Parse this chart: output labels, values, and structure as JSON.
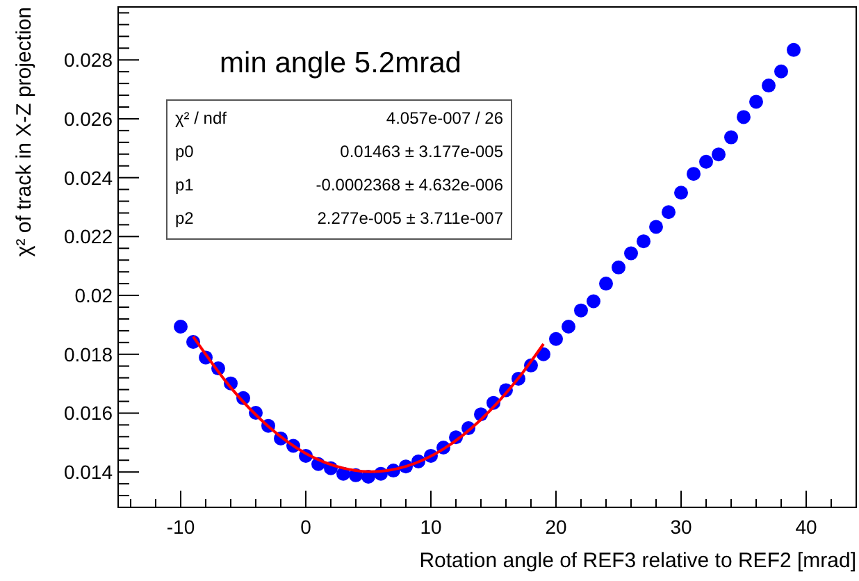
{
  "chart_data": {
    "type": "scatter",
    "title": "min angle 5.2mrad",
    "xlabel": "Rotation angle of REF3 relative to REF2 [mrad]",
    "ylabel": "χ² of track in X-Z projection",
    "annotations": [
      "χ² / ndf",
      "4.057e-007 / 26",
      "p0",
      "0.01463 ± 3.177e-005",
      "p1",
      "-0.0002368 ± 4.632e-006",
      "p2",
      "2.277e-005 ± 3.711e-007"
    ],
    "xlim": [
      -15,
      44
    ],
    "ylim": [
      0.0128,
      0.0298
    ],
    "xticks": [
      {
        "value": -14,
        "label": null
      },
      {
        "value": -12,
        "label": null
      },
      -10,
      {
        "value": -8,
        "label": null
      },
      {
        "value": -6,
        "label": null
      },
      {
        "value": -4,
        "label": null
      },
      {
        "value": -2,
        "label": null
      },
      0,
      {
        "value": 2,
        "label": null
      },
      {
        "value": 4,
        "label": null
      },
      {
        "value": 6,
        "label": null
      },
      {
        "value": 8,
        "label": null
      },
      10,
      {
        "value": 12,
        "label": null
      },
      {
        "value": 14,
        "label": null
      },
      {
        "value": 16,
        "label": null
      },
      {
        "value": 18,
        "label": null
      },
      20,
      {
        "value": 22,
        "label": null
      },
      {
        "value": 24,
        "label": null
      },
      {
        "value": 26,
        "label": null
      },
      {
        "value": 28,
        "label": null
      },
      30,
      {
        "value": 32,
        "label": null
      },
      {
        "value": 34,
        "label": null
      },
      {
        "value": 36,
        "label": null
      },
      {
        "value": 38,
        "label": null
      },
      40,
      {
        "value": 42,
        "label": null
      }
    ],
    "yticks": [
      {
        "value": 0.0128,
        "label": null
      },
      {
        "value": 0.0132,
        "label": null
      },
      {
        "value": 0.0136,
        "label": null
      },
      0.014,
      {
        "value": 0.0144,
        "label": null
      },
      {
        "value": 0.0148,
        "label": null
      },
      {
        "value": 0.0152,
        "label": null
      },
      {
        "value": 0.0156,
        "label": null
      },
      0.016,
      {
        "value": 0.0164,
        "label": null
      },
      {
        "value": 0.0168,
        "label": null
      },
      {
        "value": 0.0172,
        "label": null
      },
      {
        "value": 0.0176,
        "label": null
      },
      0.018,
      {
        "value": 0.0184,
        "label": null
      },
      {
        "value": 0.0188,
        "label": null
      },
      {
        "value": 0.0192,
        "label": null
      },
      {
        "value": 0.0196,
        "label": null
      },
      0.02,
      {
        "value": 0.0204,
        "label": null
      },
      {
        "value": 0.0208,
        "label": null
      },
      {
        "value": 0.0212,
        "label": null
      },
      {
        "value": 0.0216,
        "label": null
      },
      0.022,
      {
        "value": 0.0224,
        "label": null
      },
      {
        "value": 0.0228,
        "label": null
      },
      {
        "value": 0.0232,
        "label": null
      },
      {
        "value": 0.0236,
        "label": null
      },
      0.024,
      {
        "value": 0.0244,
        "label": null
      },
      {
        "value": 0.0248,
        "label": null
      },
      {
        "value": 0.0252,
        "label": null
      },
      {
        "value": 0.0256,
        "label": null
      },
      0.026,
      {
        "value": 0.0264,
        "label": null
      },
      {
        "value": 0.0268,
        "label": null
      },
      {
        "value": 0.0272,
        "label": null
      },
      {
        "value": 0.0276,
        "label": null
      },
      0.028,
      {
        "value": 0.0284,
        "label": null
      },
      {
        "value": 0.0288,
        "label": null
      },
      {
        "value": 0.0292,
        "label": null
      },
      {
        "value": 0.0296,
        "label": null
      }
    ],
    "grid": false,
    "series": [
      {
        "marker": "circle",
        "color": "#0000ff",
        "x": [
          -10,
          -9,
          -8,
          -7,
          -6,
          -5,
          -4,
          -3,
          -2,
          -1,
          0,
          1,
          2,
          3,
          4,
          5,
          6,
          7,
          8,
          9,
          10,
          11,
          12,
          13,
          14,
          15,
          16,
          17,
          18,
          19,
          20,
          21,
          22,
          23,
          24,
          25,
          26,
          27,
          28,
          29,
          30,
          31,
          32,
          33,
          34,
          35,
          36,
          37,
          38,
          39
        ],
        "values": [
          0.01894,
          0.01842,
          0.01789,
          0.01752,
          0.01701,
          0.01651,
          0.01601,
          0.01557,
          0.01514,
          0.01489,
          0.01455,
          0.01427,
          0.01413,
          0.01394,
          0.01389,
          0.01384,
          0.01394,
          0.01405,
          0.01419,
          0.01436,
          0.01455,
          0.01483,
          0.01518,
          0.01549,
          0.01596,
          0.01635,
          0.01678,
          0.01717,
          0.01762,
          0.018,
          0.01852,
          0.01894,
          0.01949,
          0.0198,
          0.0204,
          0.02095,
          0.02143,
          0.02184,
          0.02233,
          0.02283,
          0.02349,
          0.02413,
          0.02454,
          0.02479,
          0.02537,
          0.02606,
          0.02658,
          0.02713,
          0.02761,
          0.02834
        ]
      },
      {
        "type": "line",
        "marker": "none",
        "color": "#ff0000",
        "x": [
          -9,
          -6,
          -3,
          0,
          3,
          5.2,
          8,
          11,
          14,
          17,
          19
        ],
        "values": [
          0.0186,
          0.01687,
          0.01555,
          0.01463,
          0.01413,
          0.01401,
          0.01419,
          0.01478,
          0.01578,
          0.01719,
          0.01835
        ]
      }
    ]
  }
}
